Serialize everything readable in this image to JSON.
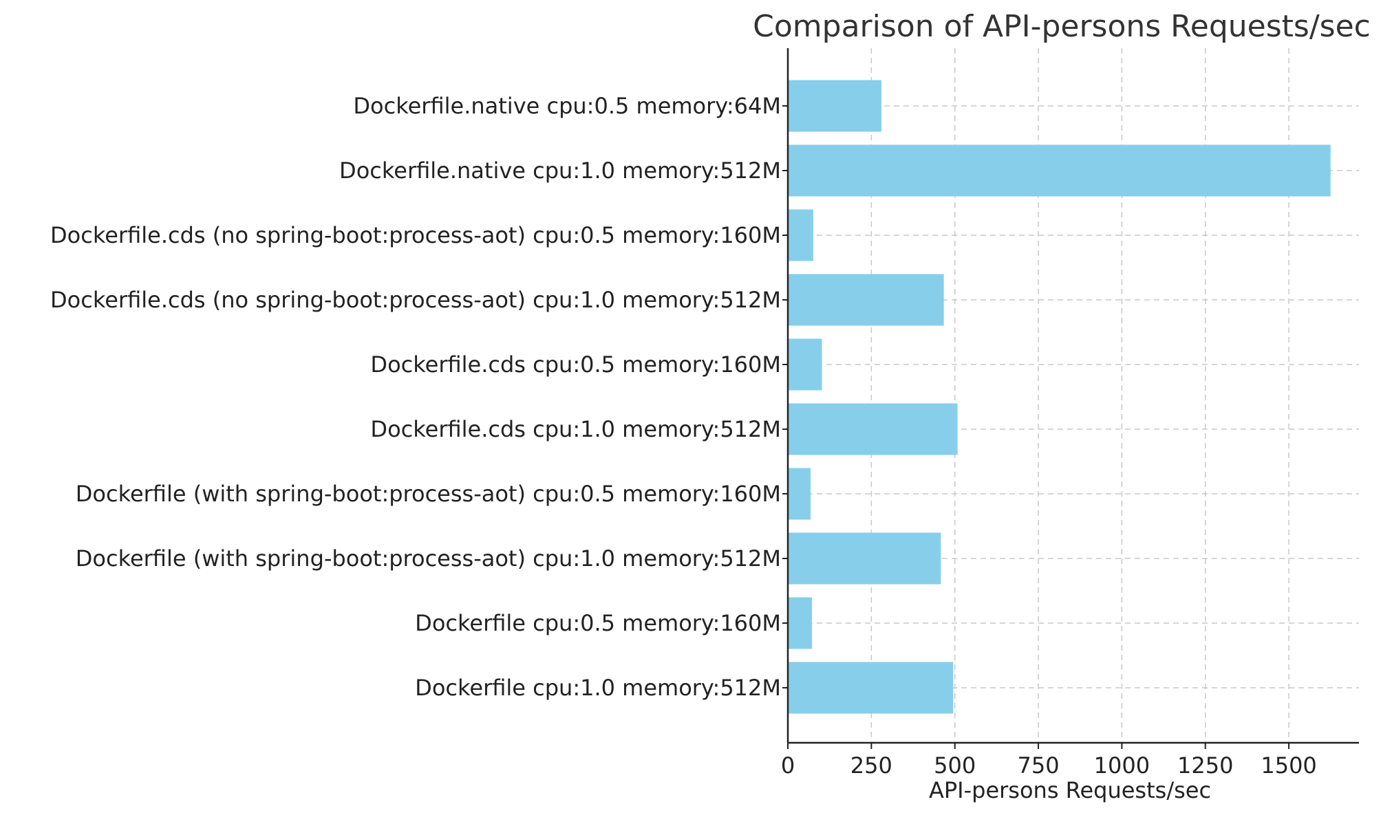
{
  "chart_data": {
    "type": "bar",
    "orientation": "horizontal",
    "title": "Comparison of API-persons Requests/sec",
    "xlabel": "API-persons Requests/sec",
    "ylabel": "",
    "xlim": [
      0,
      1710
    ],
    "xticks": [
      0,
      250,
      500,
      750,
      1000,
      1250,
      1500
    ],
    "grid": true,
    "bar_color": "#87CEEB",
    "categories": [
      "Dockerfile.native cpu:0.5 memory:64M",
      "Dockerfile.native cpu:1.0 memory:512M",
      "Dockerfile.cds (no spring-boot:process-aot) cpu:0.5 memory:160M",
      "Dockerfile.cds (no spring-boot:process-aot) cpu:1.0 memory:512M",
      "Dockerfile.cds cpu:0.5 memory:160M",
      "Dockerfile.cds cpu:1.0 memory:512M",
      "Dockerfile (with spring-boot:process-aot) cpu:0.5 memory:160M",
      "Dockerfile (with spring-boot:process-aot) cpu:1.0 memory:512M",
      "Dockerfile cpu:0.5 memory:160M",
      "Dockerfile cpu:1.0 memory:512M"
    ],
    "values": [
      280,
      1625,
      76,
      467,
      102,
      508,
      68,
      458,
      72,
      495
    ]
  }
}
